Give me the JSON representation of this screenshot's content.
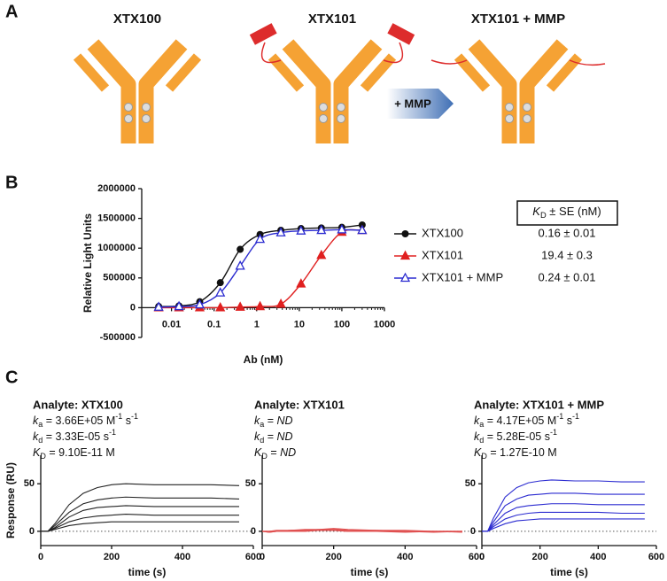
{
  "panel_labels": [
    "A",
    "B",
    "C"
  ],
  "diagram": {
    "antibodies": [
      "XTX100",
      "XTX101",
      "XTX101 + MMP"
    ],
    "arrow_label": "+ MMP"
  },
  "chart_data": [
    {
      "type": "line",
      "x_scale": "log",
      "ylabel": "Relative Light Units",
      "xlabel": "Ab (nM)",
      "x": [
        0.005,
        0.015,
        0.046,
        0.14,
        0.41,
        1.2,
        3.7,
        11,
        33,
        100,
        300
      ],
      "xlim": [
        0.002,
        1000
      ],
      "xticks": [
        0.01,
        0.1,
        1,
        10,
        100,
        1000
      ],
      "ylim": [
        -500000,
        2000000
      ],
      "yticks": [
        -500000,
        0,
        500000,
        1000000,
        1500000,
        2000000
      ],
      "series": [
        {
          "name": "XTX100",
          "color": "#111111",
          "marker": "circle",
          "values": [
            20000,
            30000,
            100000,
            420000,
            980000,
            1230000,
            1300000,
            1330000,
            1340000,
            1350000,
            1390000
          ]
        },
        {
          "name": "XTX101",
          "color": "#e02020",
          "marker": "triangle",
          "values": [
            0,
            0,
            0,
            0,
            10000,
            20000,
            60000,
            400000,
            880000,
            1270000,
            1300000
          ]
        },
        {
          "name": "XTX101 + MMP",
          "color": "#2a2ad0",
          "marker": "triangle-open",
          "values": [
            10000,
            20000,
            50000,
            250000,
            700000,
            1150000,
            1260000,
            1290000,
            1300000,
            1310000,
            1300000
          ]
        }
      ],
      "table": {
        "header": [
          {
            "text": "K",
            "format": "italic"
          },
          {
            "text": "D",
            "format": "sub"
          },
          {
            "text": " ± SE (nM)"
          }
        ],
        "rows": [
          "0.16 ± 0.01",
          "19.4 ± 0.3",
          "0.24 ± 0.01"
        ]
      }
    },
    {
      "type": "line",
      "title": "Analyte: XTX100",
      "ylabel": "Response (RU)",
      "xlabel": "time (s)",
      "annotations": [
        [
          {
            "text": "k",
            "format": "italic"
          },
          {
            "text": "a",
            "format": "sub"
          },
          {
            "text": " = 3.66E+05 M"
          },
          {
            "text": "-1",
            "format": "sup"
          },
          {
            "text": " s"
          },
          {
            "text": "-1",
            "format": "sup"
          }
        ],
        [
          {
            "text": "k",
            "format": "italic"
          },
          {
            "text": "d",
            "format": "sub"
          },
          {
            "text": " = 3.33E-05 s"
          },
          {
            "text": "-1",
            "format": "sup"
          }
        ],
        [
          {
            "text": "K",
            "format": "italic"
          },
          {
            "text": "D",
            "format": "sub"
          },
          {
            "text": " = 9.10E-11 M"
          }
        ]
      ],
      "x": [
        0,
        20,
        40,
        80,
        120,
        160,
        200,
        240,
        320,
        400,
        480,
        560
      ],
      "xlim": [
        0,
        600
      ],
      "xticks": [
        0,
        200,
        400,
        600
      ],
      "ylim": [
        -15,
        80
      ],
      "yticks": [
        0,
        50
      ],
      "series": [
        {
          "color": "#222222",
          "values": [
            0,
            0,
            8,
            28,
            40,
            46,
            49,
            50,
            49,
            49,
            49,
            48
          ]
        },
        {
          "color": "#222222",
          "values": [
            0,
            0,
            6,
            20,
            29,
            33,
            35,
            36,
            35,
            35,
            35,
            34
          ]
        },
        {
          "color": "#222222",
          "values": [
            0,
            0,
            4,
            15,
            22,
            25,
            26,
            27,
            26,
            26,
            26,
            26
          ]
        },
        {
          "color": "#222222",
          "values": [
            0,
            0,
            3,
            10,
            14,
            16,
            17,
            18,
            17,
            17,
            17,
            17
          ]
        },
        {
          "color": "#222222",
          "values": [
            0,
            0,
            2,
            6,
            8,
            9,
            10,
            10,
            10,
            10,
            10,
            10
          ]
        }
      ]
    },
    {
      "type": "line",
      "title": "Analyte: XTX101",
      "xlabel": "time (s)",
      "annotations": [
        [
          {
            "text": "k",
            "format": "italic"
          },
          {
            "text": "a",
            "format": "sub"
          },
          {
            "text": " = "
          },
          {
            "text": "ND",
            "format": "italic"
          }
        ],
        [
          {
            "text": "k",
            "format": "italic"
          },
          {
            "text": "d",
            "format": "sub"
          },
          {
            "text": " = "
          },
          {
            "text": "ND",
            "format": "italic"
          }
        ],
        [
          {
            "text": "K",
            "format": "italic"
          },
          {
            "text": "D",
            "format": "sub"
          },
          {
            "text": " = "
          },
          {
            "text": "ND",
            "format": "italic"
          }
        ]
      ],
      "x": [
        0,
        20,
        40,
        80,
        120,
        160,
        200,
        240,
        320,
        400,
        480,
        560
      ],
      "xlim": [
        0,
        600
      ],
      "xticks": [
        0,
        200,
        400,
        600
      ],
      "ylim": [
        -15,
        80
      ],
      "yticks": [
        0,
        50
      ],
      "series": [
        {
          "color": "#e05050",
          "values": [
            0,
            0,
            1,
            1,
            2,
            2,
            3,
            2,
            1,
            1,
            0,
            0
          ]
        },
        {
          "color": "#e05050",
          "values": [
            0,
            -1,
            0,
            1,
            1,
            2,
            2,
            1,
            1,
            0,
            0,
            -1
          ]
        },
        {
          "color": "#e05050",
          "values": [
            0,
            0,
            0,
            1,
            1,
            1,
            2,
            1,
            0,
            0,
            0,
            0
          ]
        },
        {
          "color": "#e05050",
          "values": [
            0,
            -1,
            0,
            0,
            1,
            1,
            1,
            0,
            0,
            0,
            -1,
            0
          ]
        },
        {
          "color": "#e05050",
          "values": [
            0,
            0,
            0,
            0,
            0,
            1,
            1,
            0,
            0,
            -1,
            0,
            0
          ]
        }
      ]
    },
    {
      "type": "line",
      "title": "Analyte: XTX101 + MMP",
      "xlabel": "time (s)",
      "annotations": [
        [
          {
            "text": "k",
            "format": "italic"
          },
          {
            "text": "a",
            "format": "sub"
          },
          {
            "text": " = 4.17E+05 M"
          },
          {
            "text": "-1",
            "format": "sup"
          },
          {
            "text": " s"
          },
          {
            "text": "-1",
            "format": "sup"
          }
        ],
        [
          {
            "text": "k",
            "format": "italic"
          },
          {
            "text": "d",
            "format": "sub"
          },
          {
            "text": " = 5.28E-05 s"
          },
          {
            "text": "-1",
            "format": "sup"
          }
        ],
        [
          {
            "text": "K",
            "format": "italic"
          },
          {
            "text": "D",
            "format": "sub"
          },
          {
            "text": " = 1.27E-10 M"
          }
        ]
      ],
      "x": [
        0,
        20,
        40,
        80,
        120,
        160,
        200,
        240,
        320,
        400,
        480,
        560
      ],
      "xlim": [
        0,
        600
      ],
      "xticks": [
        0,
        200,
        400,
        600
      ],
      "ylim": [
        -15,
        80
      ],
      "yticks": [
        0,
        50
      ],
      "series": [
        {
          "color": "#2a2ad0",
          "values": [
            0,
            0,
            14,
            36,
            46,
            51,
            53,
            54,
            53,
            53,
            52,
            52
          ]
        },
        {
          "color": "#2a2ad0",
          "values": [
            0,
            0,
            10,
            27,
            34,
            38,
            39,
            40,
            40,
            39,
            39,
            39
          ]
        },
        {
          "color": "#2a2ad0",
          "values": [
            0,
            0,
            7,
            19,
            25,
            27,
            28,
            29,
            29,
            28,
            28,
            28
          ]
        },
        {
          "color": "#2a2ad0",
          "values": [
            0,
            0,
            5,
            13,
            17,
            19,
            20,
            20,
            20,
            20,
            19,
            19
          ]
        },
        {
          "color": "#2a2ad0",
          "values": [
            0,
            0,
            3,
            8,
            11,
            12,
            13,
            13,
            13,
            13,
            13,
            13
          ]
        }
      ]
    }
  ]
}
